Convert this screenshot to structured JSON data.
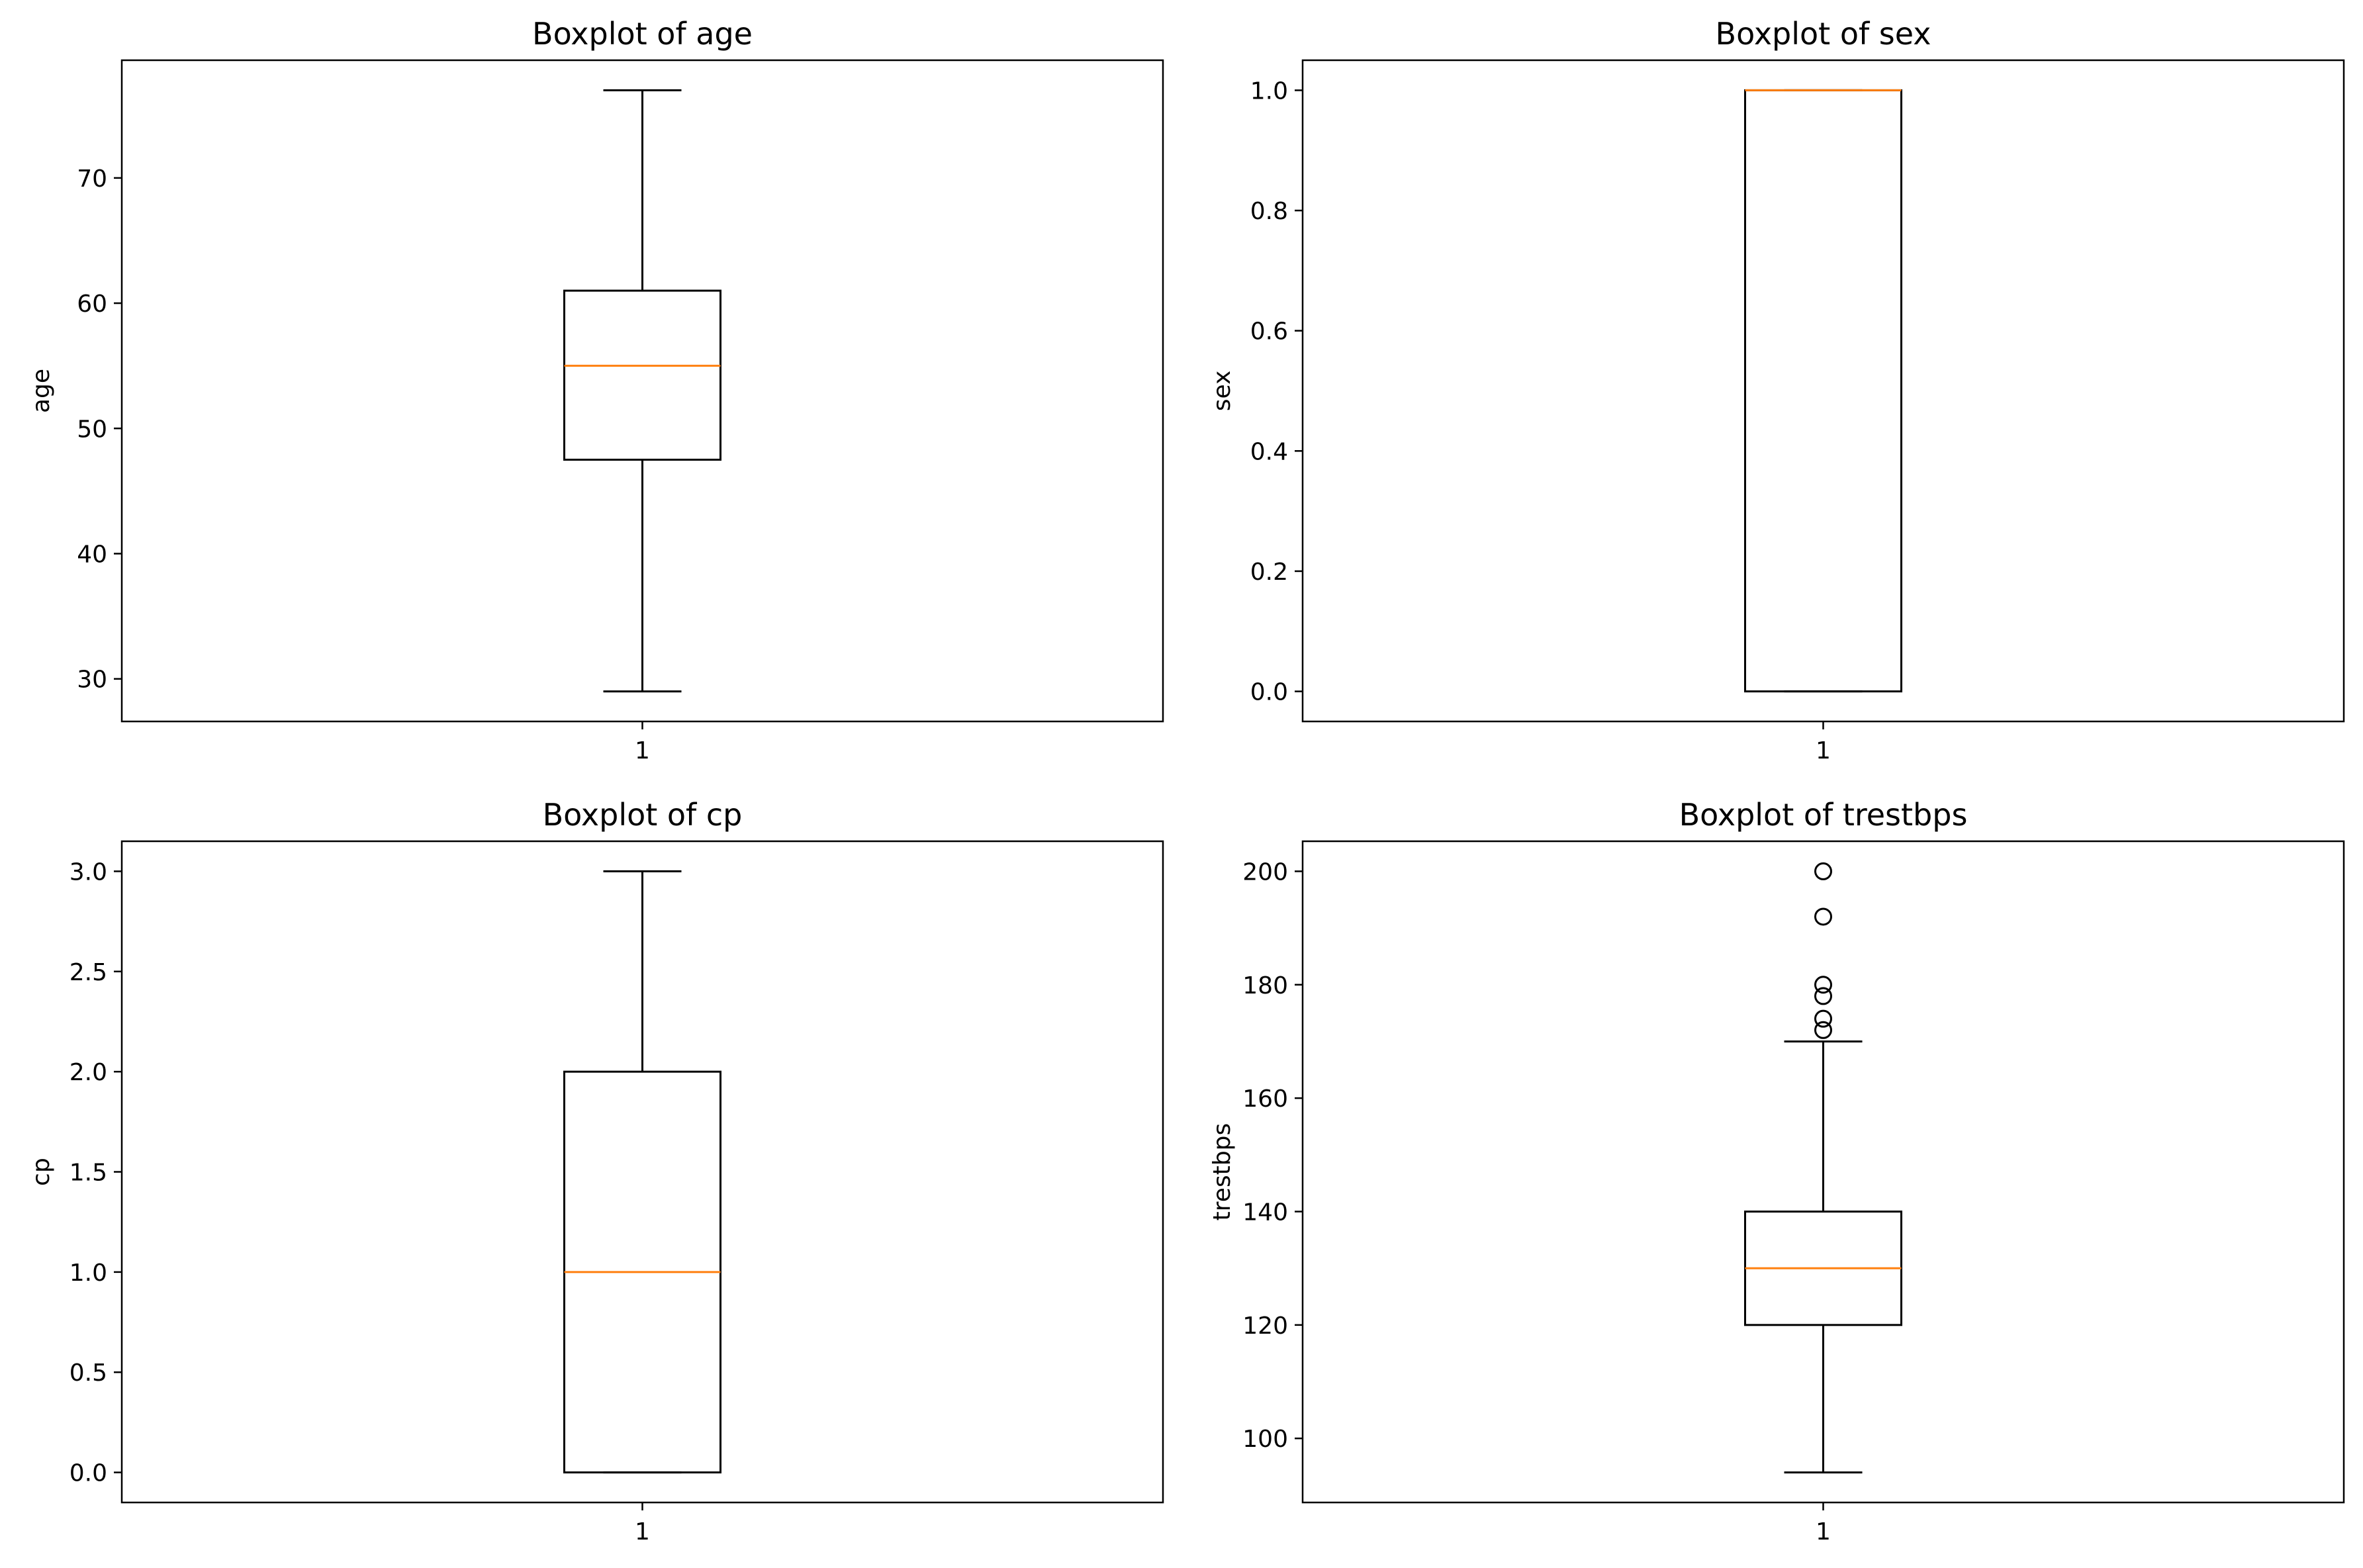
{
  "colors": {
    "box": "#000000",
    "median": "#ff7f0e",
    "background": "#ffffff"
  },
  "chart_data": [
    {
      "type": "boxplot",
      "title": "Boxplot of age",
      "xlabel": "",
      "ylabel": "age",
      "categories": [
        "1"
      ],
      "ylim": [
        26.6,
        79.4
      ],
      "yticks": [
        30,
        40,
        50,
        60,
        70
      ],
      "ytick_labels": [
        "30",
        "40",
        "50",
        "60",
        "70"
      ],
      "box": {
        "whisker_low": 29,
        "q1": 47.5,
        "median": 55,
        "q3": 61,
        "whisker_high": 77
      },
      "outliers": []
    },
    {
      "type": "boxplot",
      "title": "Boxplot of sex",
      "xlabel": "",
      "ylabel": "sex",
      "categories": [
        "1"
      ],
      "ylim": [
        -0.05,
        1.05
      ],
      "yticks": [
        0,
        0.2,
        0.4,
        0.6,
        0.8,
        1.0
      ],
      "ytick_labels": [
        "0.0",
        "0.2",
        "0.4",
        "0.6",
        "0.8",
        "1.0"
      ],
      "box": {
        "whisker_low": 0,
        "q1": 0,
        "median": 1,
        "q3": 1,
        "whisker_high": 1
      },
      "outliers": []
    },
    {
      "type": "boxplot",
      "title": "Boxplot of cp",
      "xlabel": "",
      "ylabel": "cp",
      "categories": [
        "1"
      ],
      "ylim": [
        -0.15,
        3.15
      ],
      "yticks": [
        0,
        0.5,
        1.0,
        1.5,
        2.0,
        2.5,
        3.0
      ],
      "ytick_labels": [
        "0.0",
        "0.5",
        "1.0",
        "1.5",
        "2.0",
        "2.5",
        "3.0"
      ],
      "box": {
        "whisker_low": 0,
        "q1": 0,
        "median": 1,
        "q3": 2,
        "whisker_high": 3
      },
      "outliers": []
    },
    {
      "type": "boxplot",
      "title": "Boxplot of trestbps",
      "xlabel": "",
      "ylabel": "trestbps",
      "categories": [
        "1"
      ],
      "ylim": [
        88.7,
        205.3
      ],
      "yticks": [
        100,
        120,
        140,
        160,
        180,
        200
      ],
      "ytick_labels": [
        "100",
        "120",
        "140",
        "160",
        "180",
        "200"
      ],
      "box": {
        "whisker_low": 94,
        "q1": 120,
        "median": 130,
        "q3": 140,
        "whisker_high": 170
      },
      "outliers": [
        172,
        174,
        178,
        180,
        192,
        200
      ]
    }
  ]
}
